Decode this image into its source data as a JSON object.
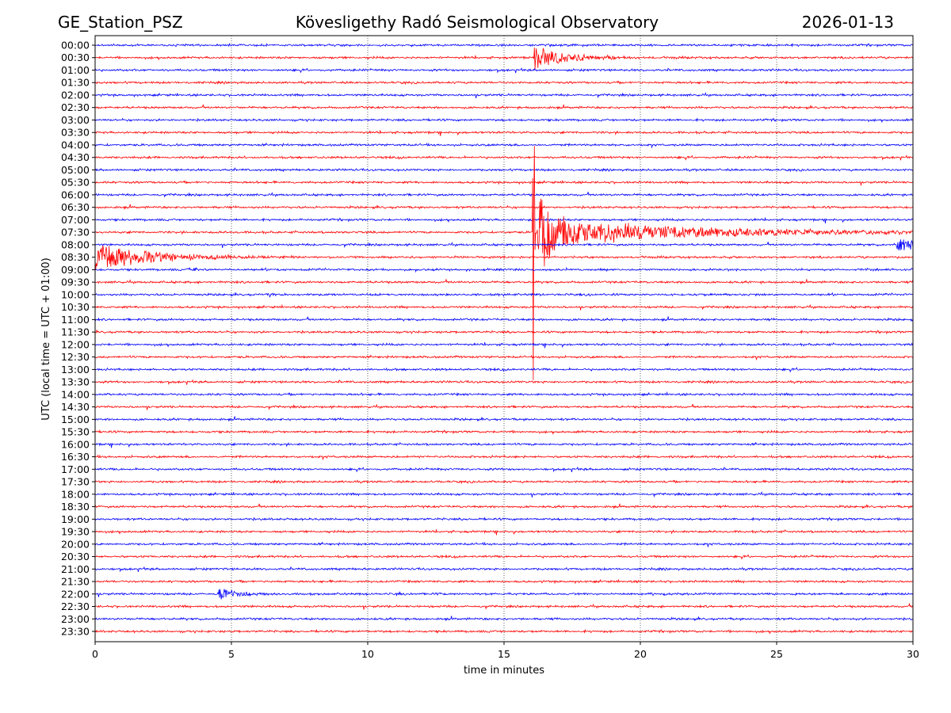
{
  "header": {
    "station": "GE_Station_PSZ",
    "title": "Kövesligethy Radó Seismological Observatory",
    "date": "2026-01-13"
  },
  "chart_data": {
    "type": "line",
    "title": "Kövesligethy Radó Seismological Observatory",
    "xlabel": "time in minutes",
    "ylabel": "UTC (local time = UTC + 01:00)",
    "xlim": [
      0,
      30
    ],
    "x_ticks": [
      "0",
      "5",
      "10",
      "15",
      "20",
      "25",
      "30"
    ],
    "grid": "vertical dotted at 5-minute ticks",
    "row_labels": [
      "00:00",
      "00:30",
      "01:00",
      "01:30",
      "02:00",
      "02:30",
      "03:00",
      "03:30",
      "04:00",
      "04:30",
      "05:00",
      "05:30",
      "06:00",
      "06:30",
      "07:00",
      "07:30",
      "08:00",
      "08:30",
      "09:00",
      "09:30",
      "10:00",
      "10:30",
      "11:00",
      "11:30",
      "12:00",
      "12:30",
      "13:00",
      "13:30",
      "14:00",
      "14:30",
      "15:00",
      "15:30",
      "16:00",
      "16:30",
      "17:00",
      "17:30",
      "18:00",
      "18:30",
      "19:00",
      "19:30",
      "20:00",
      "20:30",
      "21:00",
      "21:30",
      "22:00",
      "22:30",
      "23:00",
      "23:30"
    ],
    "row_colors": [
      "#0000ff",
      "#ff0000"
    ],
    "events": [
      {
        "row": "07:30",
        "start_min": 16.05,
        "relative_amplitude": 15,
        "decay_min": 0.12
      },
      {
        "row": "07:30",
        "start_min": 16.1,
        "relative_amplitude": 3.2,
        "decay_min": 1.3
      },
      {
        "row": "07:30",
        "start_min": 18.5,
        "relative_amplitude": 0.7,
        "decay_min": 6
      },
      {
        "row": "00:30",
        "start_min": 16.1,
        "relative_amplitude": 1.0,
        "decay_min": 1.2
      },
      {
        "row": "08:30",
        "start_min": 0,
        "relative_amplitude": 1.1,
        "decay_min": 2.2
      },
      {
        "row": "08:00",
        "start_min": 29.4,
        "relative_amplitude": 0.5,
        "decay_min": 2
      },
      {
        "row": "09:00",
        "start_min": 3.4,
        "relative_amplitude": 0.25,
        "decay_min": 0.4
      },
      {
        "row": "10:00",
        "start_min": 6.4,
        "relative_amplitude": 0.25,
        "decay_min": 0.3
      },
      {
        "row": "22:00",
        "start_min": 4.5,
        "relative_amplitude": 0.45,
        "decay_min": 0.8
      }
    ]
  }
}
